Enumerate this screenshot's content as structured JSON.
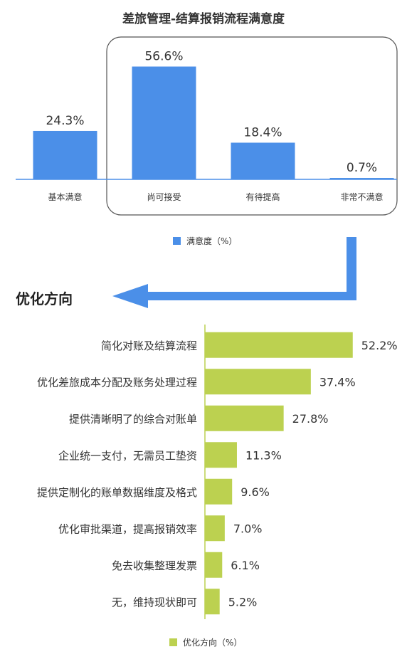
{
  "chart_data": [
    {
      "type": "bar",
      "orientation": "vertical",
      "title": "差旅管理-结算报销流程满意度",
      "categories": [
        "基本满意",
        "尚可接受",
        "有待提高",
        "非常不满意"
      ],
      "series": [
        {
          "name": "满意度（%）",
          "values": [
            24.3,
            56.6,
            18.4,
            0.7
          ]
        }
      ],
      "value_labels": [
        "24.3%",
        "56.6%",
        "18.4%",
        "0.7%"
      ],
      "ylim": [
        0,
        60
      ],
      "legend": "bottom",
      "grid": false,
      "color": "#4b8fe8"
    },
    {
      "type": "bar",
      "orientation": "horizontal",
      "title": "优化方向",
      "categories": [
        "简化对账及结算流程",
        "优化差旅成本分配及账务处理过程",
        "提供清晰明了的综合对账单",
        "企业统一支付，无需员工垫资",
        "提供定制化的账单数据维度及格式",
        "优化审批渠道，提高报销效率",
        "免去收集整理发票",
        "无，维持现状即可"
      ],
      "series": [
        {
          "name": "优化方向（%）",
          "values": [
            52.2,
            37.4,
            27.8,
            11.3,
            9.6,
            7.0,
            6.1,
            5.2
          ]
        }
      ],
      "value_labels": [
        "52.2%",
        "37.4%",
        "27.8%",
        "11.3%",
        "9.6%",
        "7.0%",
        "6.1%",
        "5.2%"
      ],
      "xlim": [
        0,
        60
      ],
      "legend": "bottom",
      "grid": false,
      "color": "#bcd150"
    }
  ],
  "colors": {
    "arrow": "#4b8fe8",
    "highlight_border": "#555555",
    "axis": "#4b8fe8",
    "axis2": "#bcd150"
  }
}
